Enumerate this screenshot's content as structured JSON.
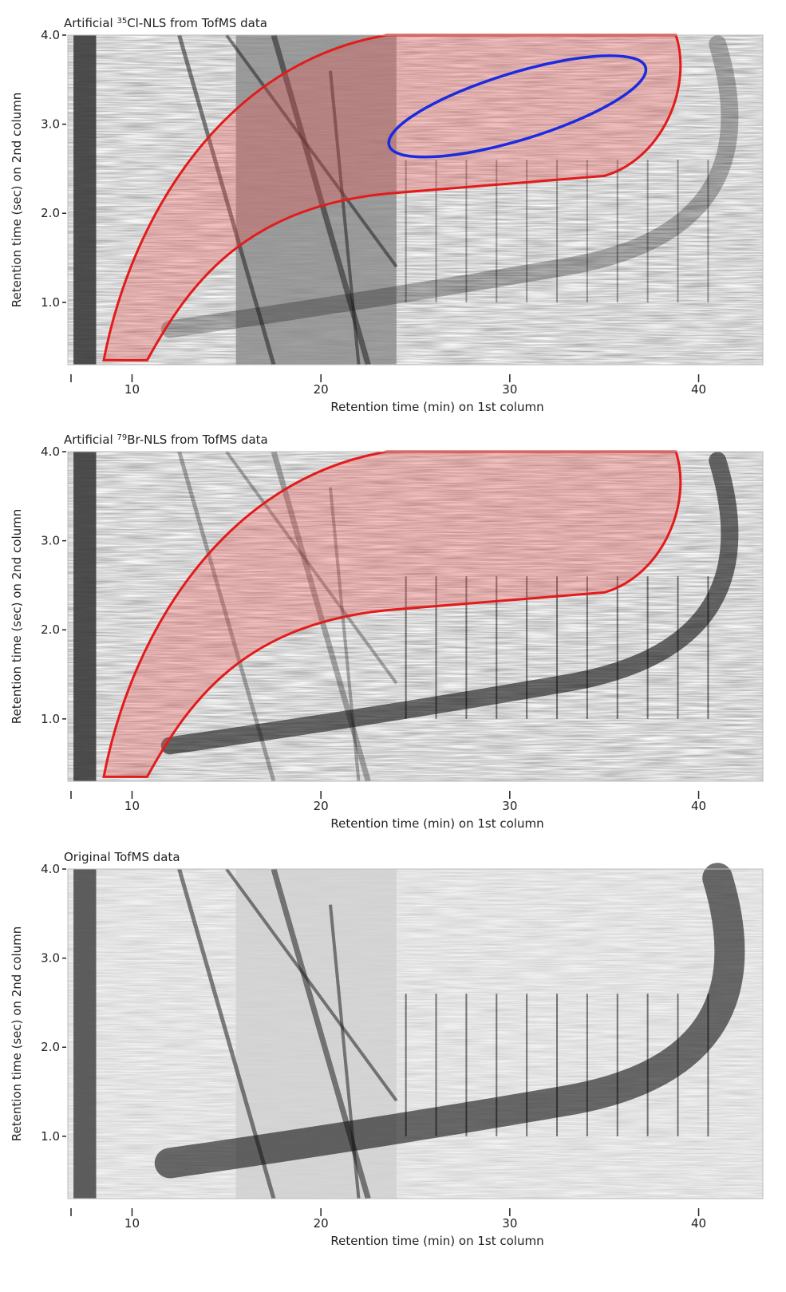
{
  "chart_data": [
    {
      "type": "image",
      "title_parts": [
        "Artificial ",
        "35",
        "Cl-NLS from TofMS data"
      ],
      "xlabel": "Retention time  (min) on 1st column",
      "ylabel": "Retention time  (sec) on 2nd column",
      "xlim": [
        6.6,
        43.4
      ],
      "ylim": [
        0.3,
        4.0
      ],
      "xticks": [
        10,
        20,
        30,
        40
      ],
      "yticks": [
        {
          "value": 1,
          "label": "1.0"
        },
        {
          "value": 2,
          "label": "2.0"
        },
        {
          "value": 3,
          "label": "3.0"
        },
        {
          "value": 4,
          "label": "4.0"
        }
      ]
    },
    {
      "type": "image",
      "title_parts": [
        "Artificial ",
        "79",
        "Br-NLS from TofMS data"
      ],
      "xlabel": "Retention time  (min) on 1st column",
      "ylabel": "Retention time  (sec) on 2nd column",
      "xlim": [
        6.6,
        43.4
      ],
      "ylim": [
        0.3,
        4.0
      ],
      "xticks": [
        10,
        20,
        30,
        40
      ],
      "yticks": [
        {
          "value": 1,
          "label": "1.0"
        },
        {
          "value": 2,
          "label": "2.0"
        },
        {
          "value": 3,
          "label": "3.0"
        },
        {
          "value": 4,
          "label": "4.0"
        }
      ]
    },
    {
      "type": "image",
      "title_parts": [
        "Original TofMS data"
      ],
      "xlabel": "Retention time  (min) on 1st column",
      "ylabel": "Retention time  (sec) on 2nd column",
      "xlim": [
        6.6,
        43.4
      ],
      "ylim": [
        0.3,
        4.0
      ],
      "xticks": [
        10,
        20,
        30,
        40
      ],
      "yticks": [
        {
          "value": 1,
          "label": "1.0"
        },
        {
          "value": 2,
          "label": "2.0"
        },
        {
          "value": 3,
          "label": "3.0"
        },
        {
          "value": 4,
          "label": "4.0"
        }
      ]
    }
  ]
}
